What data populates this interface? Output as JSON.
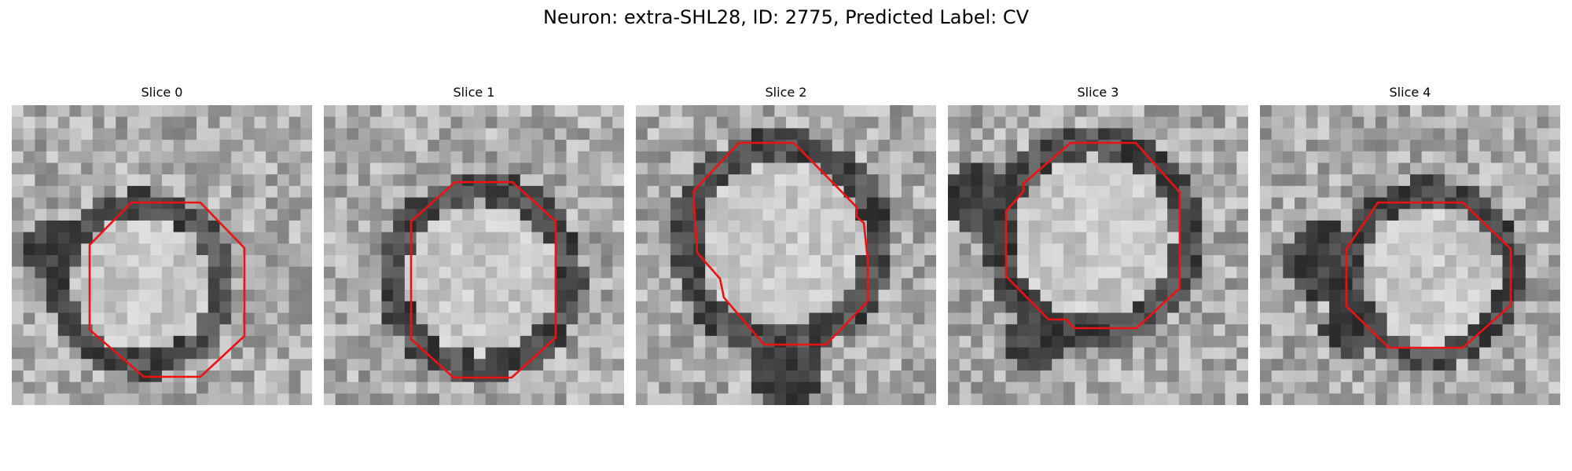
{
  "figure": {
    "title": "Neuron: extra-SHL28, ID: 2775, Predicted Label: CV"
  },
  "panels": [
    {
      "label": "Slice 0",
      "contour_color": "#ee1111"
    },
    {
      "label": "Slice 1",
      "contour_color": "#ee1111"
    },
    {
      "label": "Slice 2",
      "contour_color": "#ee1111"
    },
    {
      "label": "Slice 3",
      "contour_color": "#ee1111"
    },
    {
      "label": "Slice 4",
      "contour_color": "#ee1111"
    }
  ]
}
